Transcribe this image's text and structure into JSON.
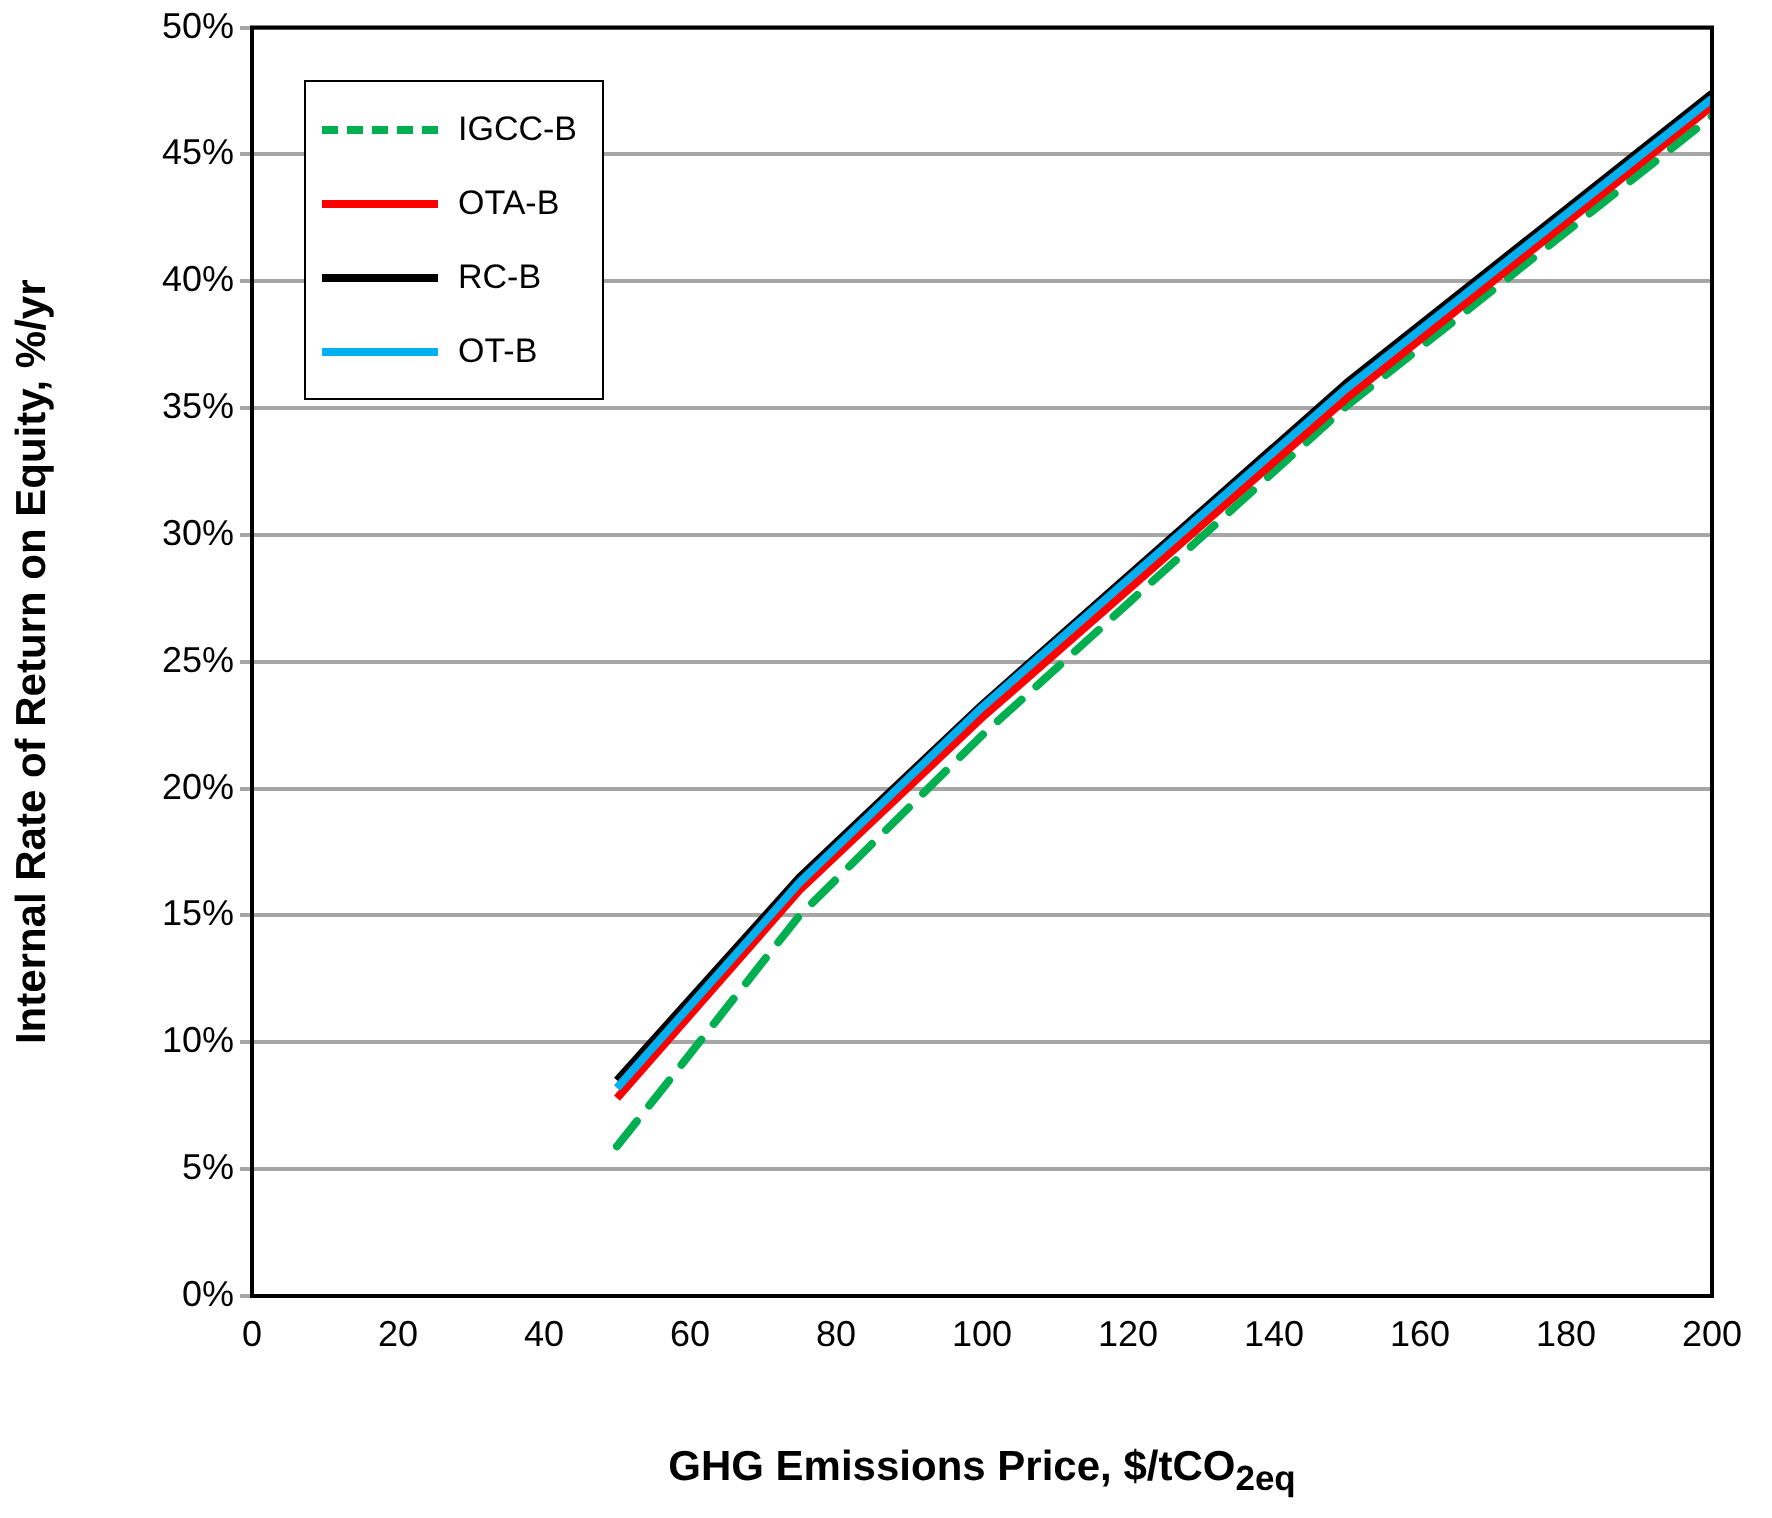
{
  "chart_data": {
    "type": "line",
    "xlabel": "GHG Emissions Price, $/tCO$_{2eq}$",
    "ylabel": "Internal Rate of Return on Equity, %/yr",
    "x": [
      50,
      75,
      100,
      150,
      200
    ],
    "series": [
      {
        "name": "IGCC-B",
        "color": "#00b050",
        "line_style": "dashed",
        "values": [
          5.9,
          15.0,
          22.1,
          35.1,
          46.5
        ]
      },
      {
        "name": "OTA-B",
        "color": "#ff0000",
        "values": [
          7.8,
          16.0,
          22.8,
          35.4,
          46.9
        ]
      },
      {
        "name": "RC-B",
        "color": "#000000",
        "values": [
          8.5,
          16.5,
          23.3,
          36.0,
          47.4
        ]
      },
      {
        "name": "OT-B",
        "color": "#00b0f0",
        "values": [
          8.2,
          16.3,
          23.2,
          35.8,
          47.2
        ]
      }
    ],
    "xlim": [
      0,
      200
    ],
    "xticks": [
      0,
      20,
      40,
      60,
      80,
      100,
      120,
      140,
      160,
      180,
      200
    ],
    "ylim": [
      0,
      50
    ],
    "yticks": [
      {
        "value": 0,
        "label": "0%"
      },
      {
        "value": 5,
        "label": "5%"
      },
      {
        "value": 10,
        "label": "10%"
      },
      {
        "value": 15,
        "label": "15%"
      },
      {
        "value": 20,
        "label": "20%"
      },
      {
        "value": 25,
        "label": "25%"
      },
      {
        "value": 30,
        "label": "30%"
      },
      {
        "value": 35,
        "label": "35%"
      },
      {
        "value": 40,
        "label": "40%"
      },
      {
        "value": 45,
        "label": "45%"
      },
      {
        "value": 50,
        "label": "50%"
      }
    ],
    "grid": "y",
    "legend": "top left",
    "marker": "none",
    "line_style": "solid"
  }
}
